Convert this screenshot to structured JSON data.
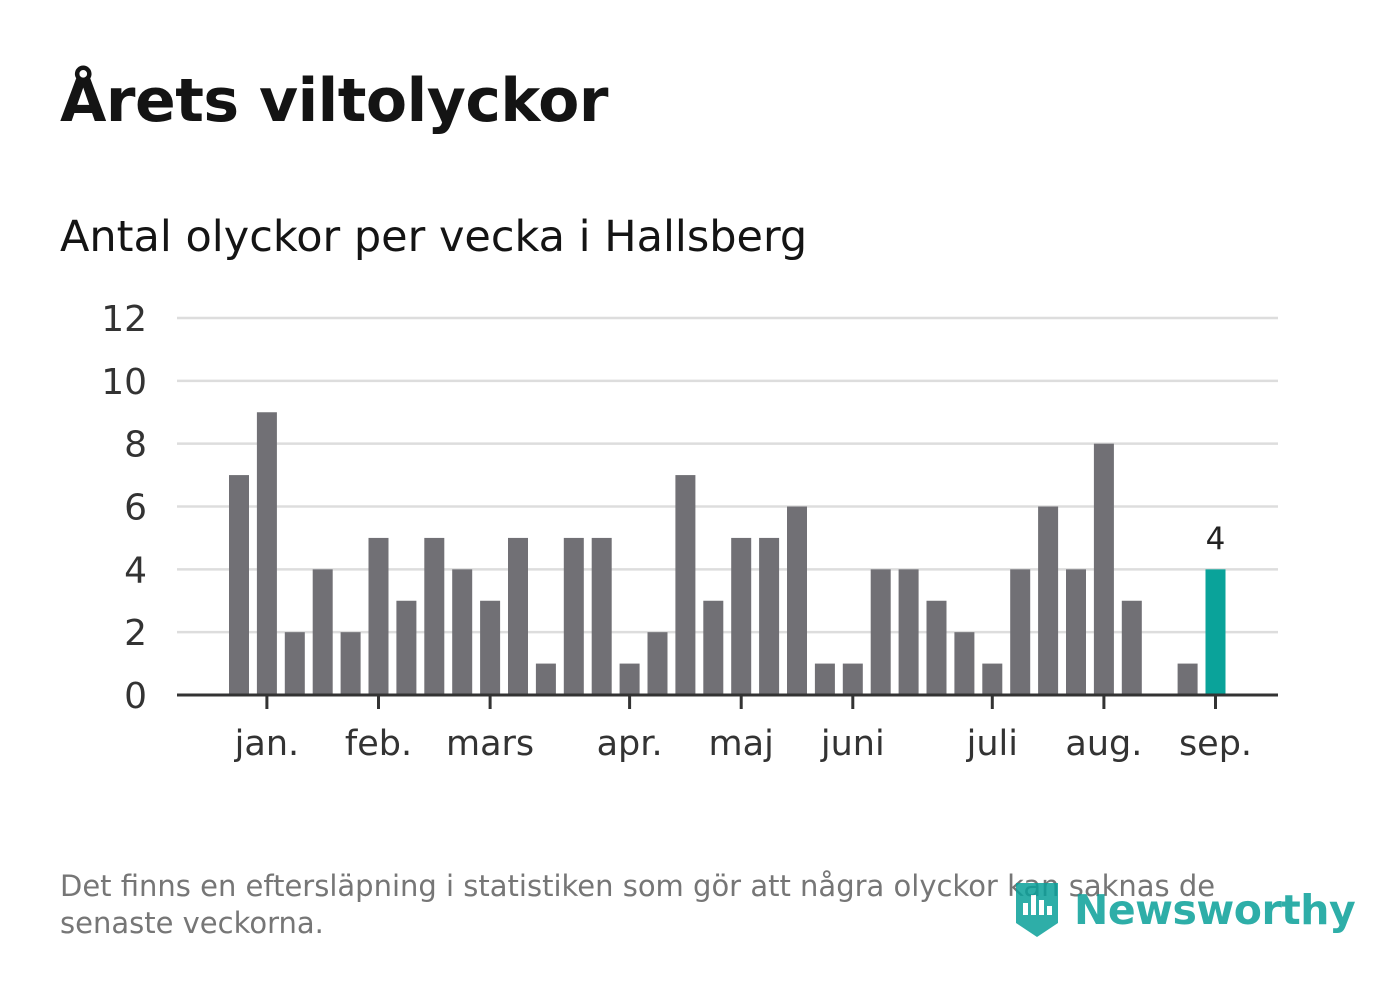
{
  "title": "Årets viltolyckor",
  "subtitle": "Antal olyckor per vecka i Hallsberg",
  "footnote": "Det finns en eftersläpning i statistiken som gör att några olyckor kan saknas de senaste veckorna.",
  "logo": {
    "text": "Newsworthy",
    "icon": "newsworthy-logo-icon",
    "color": "#0aa09a"
  },
  "colors": {
    "bar": "#717075",
    "highlight": "#0aa39a",
    "grid": "#dddddd",
    "axis": "#333333"
  },
  "chart_data": {
    "type": "bar",
    "ylim": [
      0,
      12
    ],
    "yticks": [
      0,
      2,
      4,
      6,
      8,
      10,
      12
    ],
    "grid": true,
    "values": [
      7,
      9,
      2,
      4,
      2,
      5,
      3,
      5,
      4,
      3,
      5,
      1,
      5,
      5,
      1,
      2,
      7,
      3,
      5,
      5,
      6,
      1,
      1,
      4,
      4,
      3,
      2,
      1,
      4,
      6,
      4,
      8,
      3,
      0,
      1,
      4
    ],
    "highlight_index": 35,
    "highlight_label": "4",
    "month_labels": [
      {
        "label": "jan.",
        "week": 1
      },
      {
        "label": "feb.",
        "week": 5
      },
      {
        "label": "mars",
        "week": 9
      },
      {
        "label": "apr.",
        "week": 14
      },
      {
        "label": "maj",
        "week": 18
      },
      {
        "label": "juni",
        "week": 22
      },
      {
        "label": "juli",
        "week": 27
      },
      {
        "label": "aug.",
        "week": 31
      },
      {
        "label": "sep.",
        "week": 35
      }
    ]
  }
}
